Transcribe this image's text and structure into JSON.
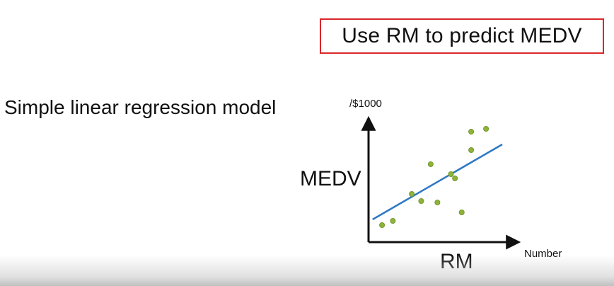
{
  "header": {
    "title": "Use RM to predict MEDV"
  },
  "main": {
    "subtitle": "Simple linear regression model"
  },
  "colors": {
    "title_border": "#d9262b",
    "points": "#8db33a",
    "regression_line": "#2e78c4",
    "axes": "#111111"
  },
  "chart_data": {
    "type": "scatter",
    "xlabel": "RM",
    "ylabel": "MEDV",
    "x_unit": "Number",
    "y_unit": "/$1000",
    "points": [
      {
        "x": 1.0,
        "y": 1.2
      },
      {
        "x": 1.8,
        "y": 1.5
      },
      {
        "x": 3.2,
        "y": 3.4
      },
      {
        "x": 3.9,
        "y": 2.9
      },
      {
        "x": 4.6,
        "y": 5.5
      },
      {
        "x": 5.1,
        "y": 2.8
      },
      {
        "x": 6.1,
        "y": 4.8
      },
      {
        "x": 6.4,
        "y": 4.5
      },
      {
        "x": 6.9,
        "y": 2.1
      },
      {
        "x": 7.6,
        "y": 6.5
      },
      {
        "x": 7.6,
        "y": 7.8
      },
      {
        "x": 8.7,
        "y": 8.0
      }
    ],
    "regression_line": [
      {
        "x": 0.3,
        "y": 1.6
      },
      {
        "x": 9.9,
        "y": 6.9
      }
    ],
    "xlim": [
      0,
      11
    ],
    "ylim": [
      0,
      9.5
    ],
    "grid": false,
    "legend": "none"
  }
}
